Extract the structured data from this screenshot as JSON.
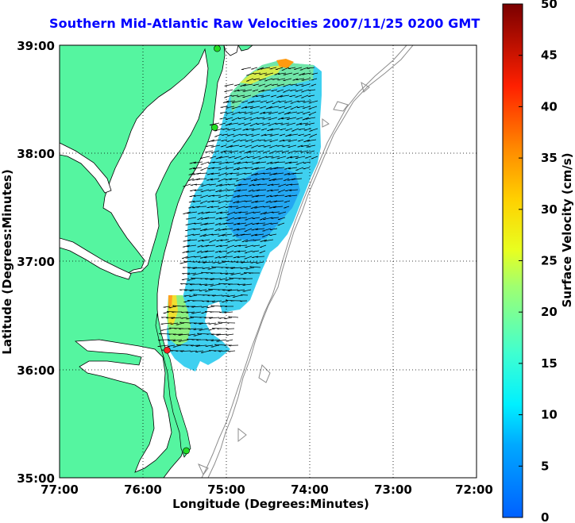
{
  "title": "Southern Mid-Atlantic Raw Velocities 2007/11/25 0200 GMT",
  "map": {
    "xlabel": "Longitude (Degrees:Minutes)",
    "ylabel": "Latitude (Degrees:Minutes)",
    "x_ticks": [
      "77:00",
      "76:00",
      "75:00",
      "74:00",
      "73:00",
      "72:00"
    ],
    "y_ticks": [
      "39:00",
      "38:00",
      "37:00",
      "36:00",
      "35:00"
    ],
    "lon_range": [
      -77,
      -72
    ],
    "lat_range": [
      35,
      39
    ],
    "grid": "dotted",
    "land_color": "#55f5a0",
    "coast_color": "#000000",
    "isobath_color": "#8c8c8c",
    "stations": [
      {
        "lon": -75.11,
        "lat": 38.97,
        "color": "#22dd22"
      },
      {
        "lon": -75.14,
        "lat": 38.24,
        "color": "#22dd22"
      },
      {
        "lon": -75.71,
        "lat": 36.18,
        "color": "#ff2222"
      },
      {
        "lon": -75.48,
        "lat": 35.25,
        "color": "#22dd22"
      }
    ]
  },
  "colorbar": {
    "label": "Surface Velocity (cm/s)",
    "range": [
      0,
      50
    ],
    "ticks": [
      "0",
      "5",
      "10",
      "15",
      "20",
      "25",
      "30",
      "35",
      "40",
      "45",
      "50"
    ],
    "colormap": "jet"
  }
}
